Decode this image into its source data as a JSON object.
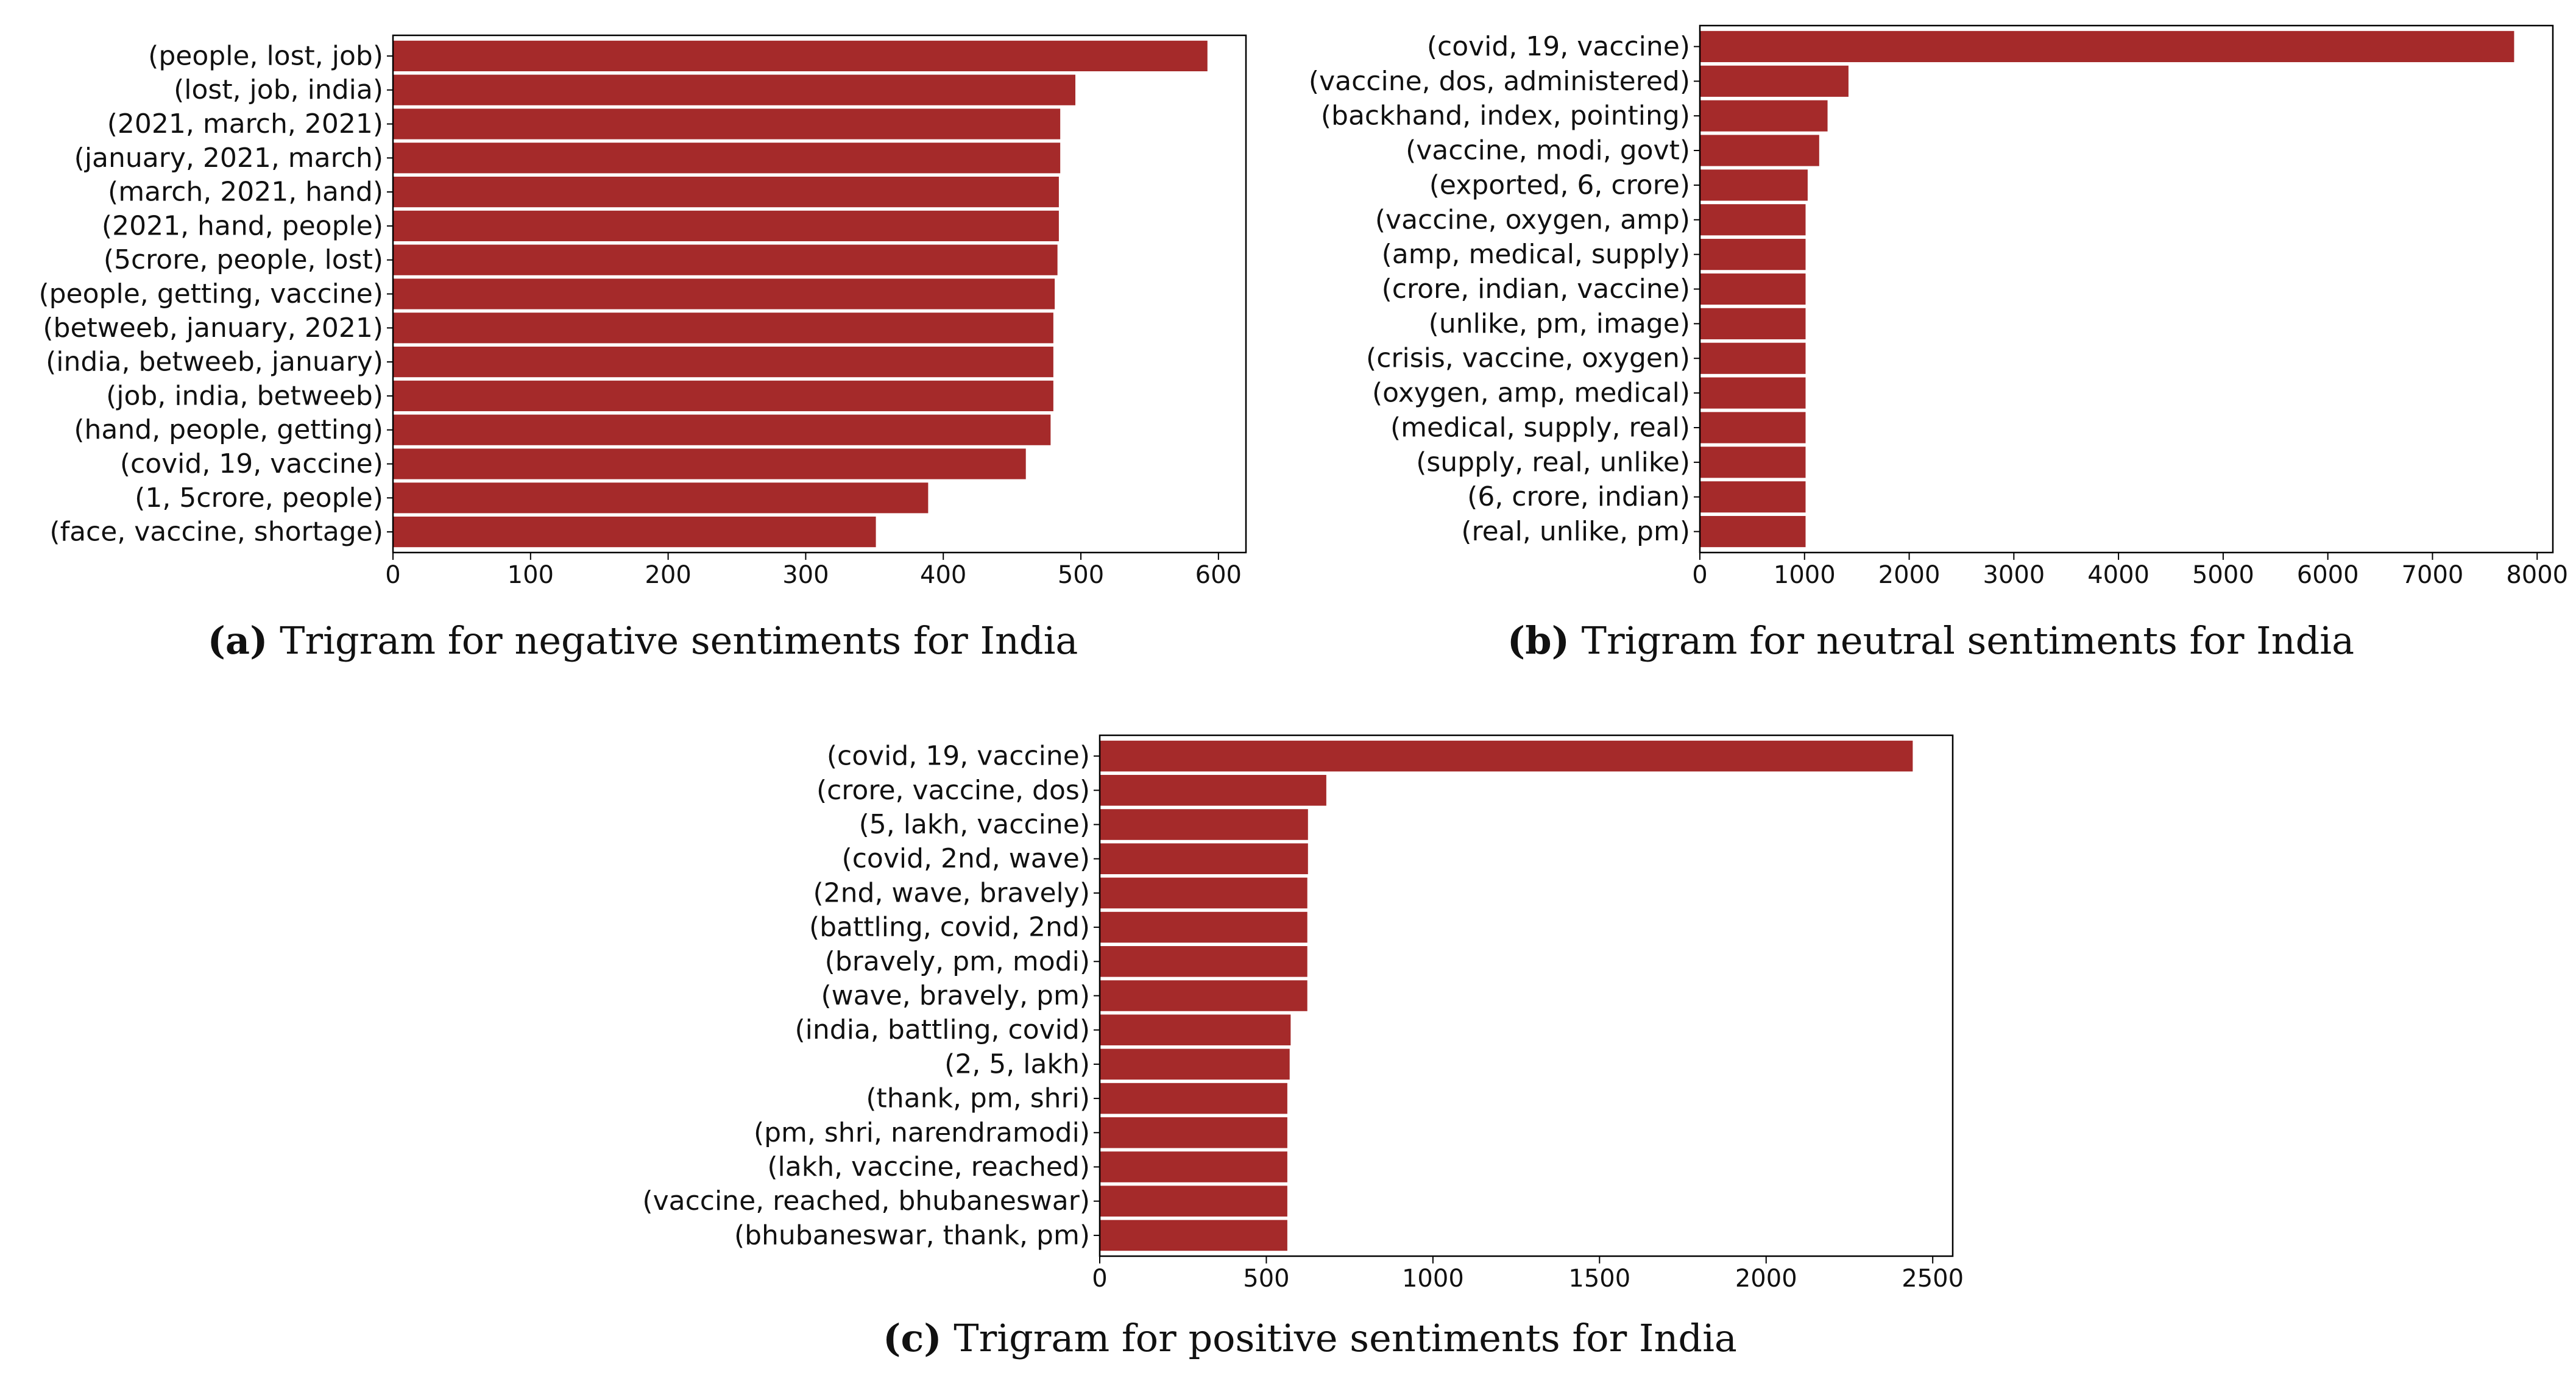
{
  "chart_data": [
    {
      "id": "a",
      "type": "bar",
      "orientation": "horizontal",
      "title": "",
      "caption_letter": "(a)",
      "caption_text": "Trigram for negative sentiments for India",
      "xlabel": "",
      "ylabel": "",
      "xlim": [
        0,
        620
      ],
      "xticks": [
        0,
        100,
        200,
        300,
        400,
        500,
        600
      ],
      "bar_color": "#a52a2a",
      "categories": [
        "(people, lost, job)",
        "(lost, job, india)",
        "(2021, march, 2021)",
        "(january, 2021, march)",
        "(march, 2021, hand)",
        "(2021, hand, people)",
        "(5crore, people, lost)",
        "(people, getting, vaccine)",
        "(betweeb, january, 2021)",
        "(india, betweeb, january)",
        "(job, india, betweeb)",
        "(hand, people, getting)",
        "(covid, 19, vaccine)",
        "(1, 5crore, people)",
        "(face, vaccine, shortage)"
      ],
      "values": [
        592,
        496,
        485,
        485,
        484,
        484,
        483,
        481,
        480,
        480,
        480,
        478,
        460,
        389,
        351
      ]
    },
    {
      "id": "b",
      "type": "bar",
      "orientation": "horizontal",
      "title": "",
      "caption_letter": "(b)",
      "caption_text": "Trigram for neutral sentiments for India",
      "xlabel": "",
      "ylabel": "",
      "xlim": [
        0,
        8150
      ],
      "xticks": [
        0,
        1000,
        2000,
        3000,
        4000,
        5000,
        6000,
        7000,
        8000
      ],
      "bar_color": "#a52a2a",
      "categories": [
        "(covid, 19, vaccine)",
        "(vaccine, dos, administered)",
        "(backhand, index, pointing)",
        "(vaccine, modi, govt)",
        "(exported, 6, crore)",
        "(vaccine, oxygen, amp)",
        "(amp, medical, supply)",
        "(crore, indian, vaccine)",
        "(unlike, pm, image)",
        "(crisis, vaccine, oxygen)",
        "(oxygen, amp, medical)",
        "(medical, supply, real)",
        "(supply, real, unlike)",
        "(6, crore, indian)",
        "(real, unlike, pm)"
      ],
      "values": [
        7780,
        1420,
        1220,
        1140,
        1030,
        1010,
        1010,
        1010,
        1010,
        1010,
        1010,
        1010,
        1010,
        1010,
        1010
      ]
    },
    {
      "id": "c",
      "type": "bar",
      "orientation": "horizontal",
      "title": "",
      "caption_letter": "(c)",
      "caption_text": "Trigram for positive sentiments for India",
      "xlabel": "",
      "ylabel": "",
      "xlim": [
        0,
        2560
      ],
      "xticks": [
        0,
        500,
        1000,
        1500,
        2000,
        2500
      ],
      "bar_color": "#a52a2a",
      "categories": [
        "(covid, 19, vaccine)",
        "(crore, vaccine, dos)",
        "(5, lakh, vaccine)",
        "(covid, 2nd, wave)",
        "(2nd, wave, bravely)",
        "(battling, covid, 2nd)",
        "(bravely, pm, modi)",
        "(wave, bravely, pm)",
        "(india, battling, covid)",
        "(2, 5, lakh)",
        "(thank, pm, shri)",
        "(pm, shri, narendramodi)",
        "(lakh, vaccine, reached)",
        "(vaccine, reached, bhubaneswar)",
        "(bhubaneswar, thank, pm)"
      ],
      "values": [
        2440,
        680,
        625,
        625,
        623,
        623,
        623,
        623,
        573,
        570,
        563,
        563,
        563,
        563,
        563
      ]
    }
  ]
}
